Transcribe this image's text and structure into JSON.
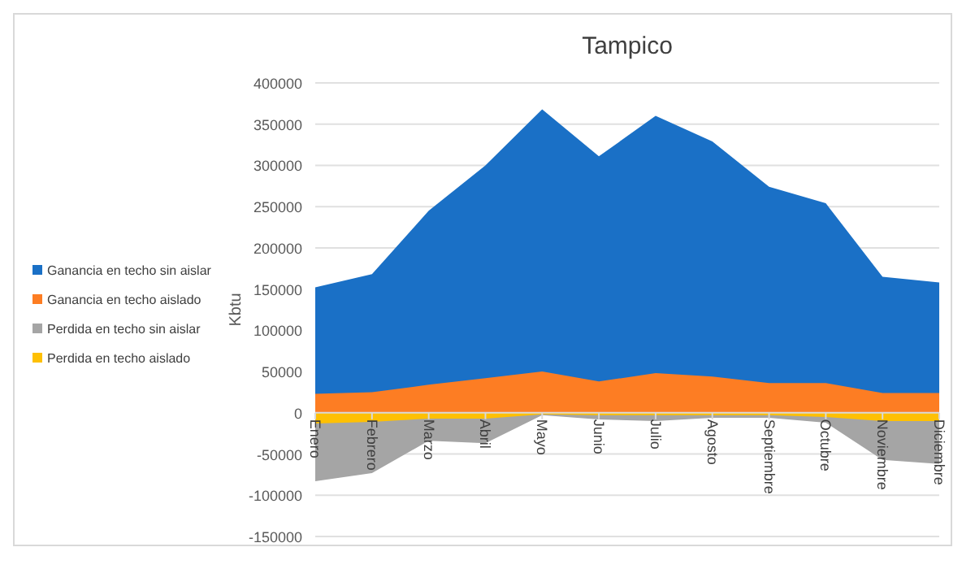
{
  "chart_data": {
    "type": "area",
    "title": "Tampico",
    "ylabel": "Kbtu",
    "categories": [
      "Enero",
      "Febrero",
      "Marzo",
      "Abril",
      "Mayo",
      "Junio",
      "Julio",
      "Agosto",
      "Septiembre",
      "Octubre",
      "Noviembre",
      "Diciembre"
    ],
    "series": [
      {
        "name": "Ganancia en techo sin aislar",
        "color": "#1a70c6",
        "values": [
          152000,
          168000,
          245000,
          300000,
          368000,
          311000,
          360000,
          329000,
          274000,
          254000,
          165000,
          158000
        ]
      },
      {
        "name": "Ganancia en techo aislado",
        "color": "#fd7d23",
        "values": [
          23000,
          25000,
          34000,
          42000,
          50000,
          38000,
          48000,
          44000,
          36000,
          36000,
          24000,
          24000
        ]
      },
      {
        "name": "Perdida en techo sin aislar",
        "color": "#a5a5a5",
        "values": [
          -83000,
          -73000,
          -34000,
          -37000,
          -3000,
          -8000,
          -10000,
          -6000,
          -6000,
          -12000,
          -57000,
          -62000
        ]
      },
      {
        "name": "Perdida en techo aislado",
        "color": "#fec003",
        "values": [
          -13000,
          -11000,
          -7000,
          -7000,
          -2000,
          -3000,
          -3000,
          -3000,
          -3000,
          -5000,
          -10000,
          -10000
        ]
      }
    ],
    "ylim": [
      -150000,
      400000
    ],
    "yticks": [
      -150000,
      -100000,
      -50000,
      0,
      50000,
      100000,
      150000,
      200000,
      250000,
      300000,
      350000,
      400000
    ],
    "grid": "y",
    "legend": "left"
  }
}
